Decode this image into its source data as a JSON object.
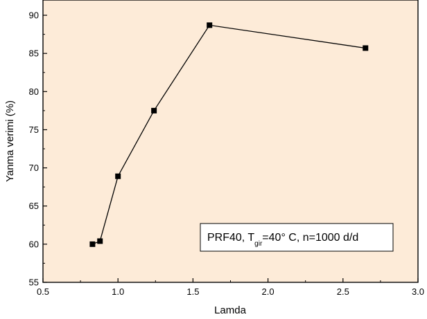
{
  "chart_data": {
    "type": "line",
    "xlabel": "Lamda",
    "ylabel": "Yanma verimi (%)",
    "xlim": [
      0.5,
      3.0
    ],
    "ylim": [
      55,
      92
    ],
    "x_ticks": [
      "0.5",
      "1.0",
      "1.5",
      "2.0",
      "2.5",
      "3.0"
    ],
    "y_ticks": [
      "55",
      "60",
      "65",
      "70",
      "75",
      "80",
      "85",
      "90"
    ],
    "grid": false,
    "background_color": "#fdebd8",
    "line_color": "#000000",
    "marker": "square",
    "series": [
      {
        "x": [
          0.83,
          0.88,
          1.0,
          1.24,
          1.61,
          2.65
        ],
        "y": [
          60.0,
          60.4,
          68.9,
          77.5,
          88.7,
          85.7
        ]
      }
    ],
    "annotation": {
      "prefix": "PRF40, T",
      "subscript": "gir",
      "suffix": "=40° C, n=1000 d/d",
      "position": "bottom-right"
    }
  }
}
